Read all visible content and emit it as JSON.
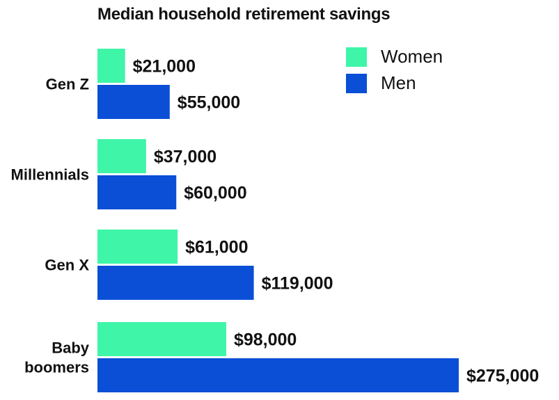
{
  "chart_data": {
    "type": "bar",
    "orientation": "horizontal",
    "title": "Median household retirement savings",
    "xlabel": "",
    "ylabel": "",
    "categories": [
      "Gen Z",
      "Millennials",
      "Gen X",
      "Baby boomers"
    ],
    "category_lines": [
      [
        "Gen Z"
      ],
      [
        "Millennials"
      ],
      [
        "Gen X"
      ],
      [
        "Baby",
        "boomers"
      ]
    ],
    "series": [
      {
        "name": "Women",
        "color": "#3ef5a8",
        "values": [
          21000,
          37000,
          61000,
          98000
        ],
        "labels": [
          "$21,000",
          "$37,000",
          "$61,000",
          "$98,000"
        ]
      },
      {
        "name": "Men",
        "color": "#0a4fd6",
        "values": [
          55000,
          60000,
          119000,
          275000
        ],
        "labels": [
          "$55,000",
          "$60,000",
          "$119,000",
          "$275,000"
        ]
      }
    ],
    "xlim": [
      0,
      275000
    ],
    "grid": false,
    "axes_visible": false,
    "legend_position": "top-right"
  }
}
